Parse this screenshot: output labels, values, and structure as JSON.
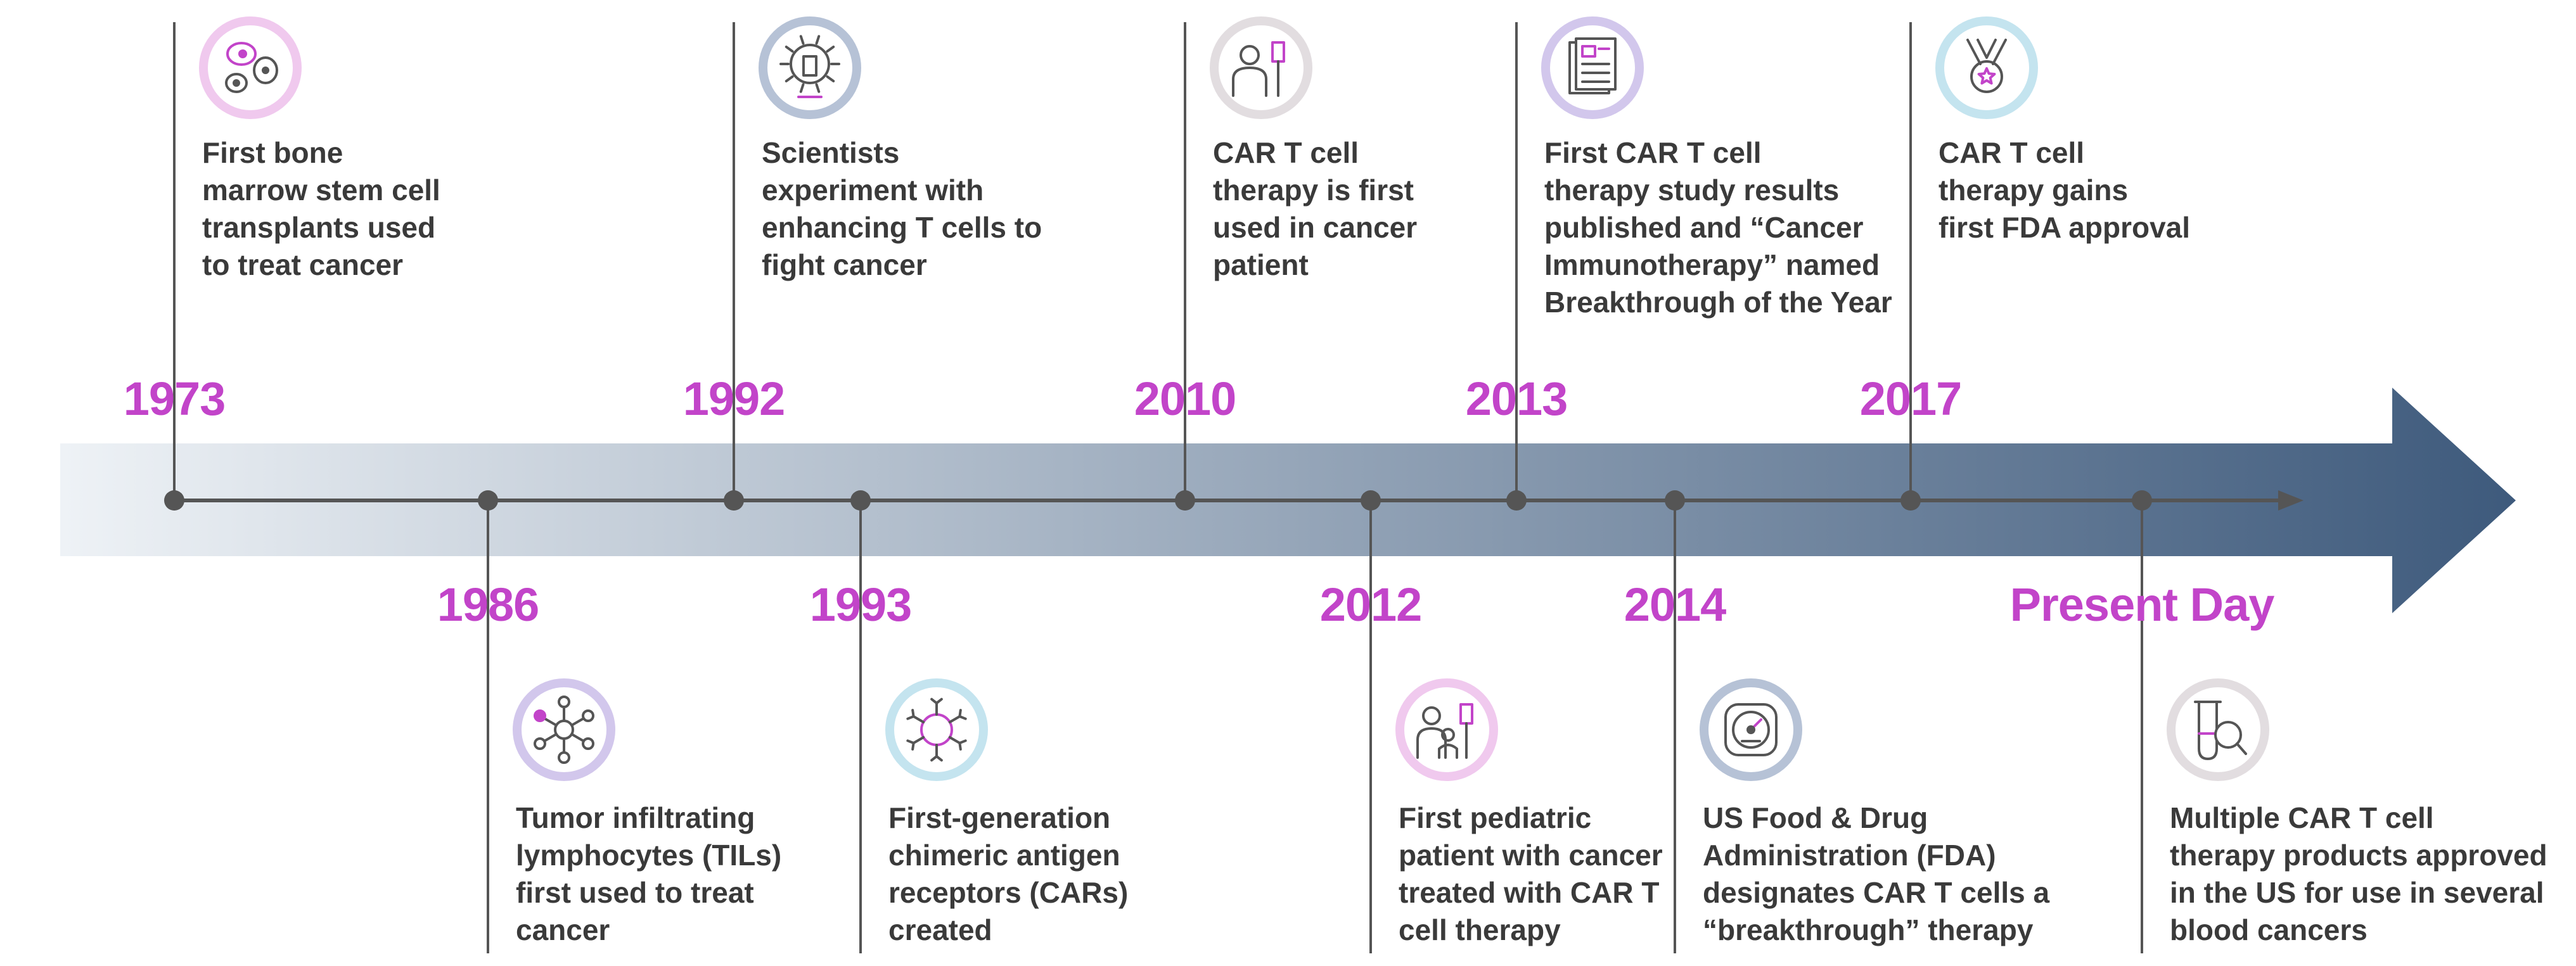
{
  "events": [
    {
      "year": "1973",
      "position": "top",
      "icon": "stem-cells-icon",
      "ring": "#f0c9ee",
      "lines": [
        "First bone",
        "marrow stem cell",
        "transplants used",
        "to treat cancer"
      ]
    },
    {
      "year": "1986",
      "position": "bottom",
      "icon": "til-network-icon",
      "ring": "#d2c7ec",
      "lines": [
        "Tumor infiltrating",
        "lymphocytes (TILs)",
        "first used to treat",
        "cancer"
      ]
    },
    {
      "year": "1992",
      "position": "top",
      "icon": "t-cell-microscope-icon",
      "ring": "#b6c2d6",
      "lines": [
        "Scientists",
        "experiment with",
        "enhancing T cells to",
        "fight cancer"
      ]
    },
    {
      "year": "1993",
      "position": "bottom",
      "icon": "car-receptor-icon",
      "ring": "#c4e4ef",
      "lines": [
        "First-generation",
        "chimeric antigen",
        "receptors (CARs)",
        "created"
      ]
    },
    {
      "year": "2010",
      "position": "top",
      "icon": "patient-iv-icon",
      "ring": "#e2dde0",
      "lines": [
        "CAR T cell",
        "therapy is first",
        "used in cancer",
        "patient"
      ]
    },
    {
      "year": "2012",
      "position": "bottom",
      "icon": "pediatric-patient-icon",
      "ring": "#f0c9ee",
      "lines": [
        "First pediatric",
        "patient with cancer",
        "treated with CAR T",
        "cell therapy"
      ]
    },
    {
      "year": "2013",
      "position": "top",
      "icon": "journal-icon",
      "ring": "#d2c7ec",
      "lines": [
        "First CAR T cell",
        "therapy study results",
        "published and “Cancer",
        "Immunotherapy” named",
        "Breakthrough of the Year"
      ]
    },
    {
      "year": "2014",
      "position": "bottom",
      "icon": "speedometer-icon",
      "ring": "#b6c2d6",
      "lines": [
        "US Food & Drug",
        "Administration (FDA)",
        "designates CAR T cells a",
        "“breakthrough” therapy"
      ]
    },
    {
      "year": "2017",
      "position": "top",
      "icon": "medal-icon",
      "ring": "#c4e4ef",
      "lines": [
        "CAR T cell",
        "therapy gains",
        "first FDA approval"
      ]
    },
    {
      "year": "Present Day",
      "position": "bottom",
      "icon": "test-tube-search-icon",
      "ring": "#e2dde0",
      "lines": [
        "Multiple CAR T cell",
        "therapy products approved",
        "in the US for use in several",
        "blood cancers"
      ]
    }
  ],
  "colors": {
    "year_text": "#c244c9",
    "arrow_start": "#eef2f6",
    "arrow_end": "#3e5a7c",
    "axis": "#555555",
    "icon_accent": "#c244c9",
    "icon_stroke": "#555555"
  }
}
